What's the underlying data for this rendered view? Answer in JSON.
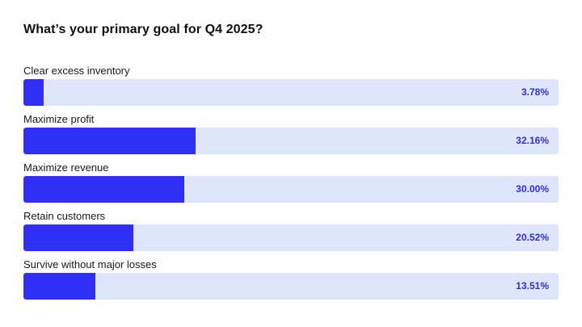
{
  "colors": {
    "bar_fill": "#2f2ff5",
    "bar_track": "#dfe6fb",
    "value_text": "#2f2fd9"
  },
  "chart_data": {
    "type": "bar",
    "orientation": "horizontal",
    "title": "What’s your primary goal for Q4 2025?",
    "categories": [
      "Clear excess inventory",
      "Maximize profit",
      "Maximize revenue",
      "Retain customers",
      "Survive without major losses"
    ],
    "values": [
      3.78,
      32.16,
      30.0,
      20.52,
      13.51
    ],
    "value_labels": [
      "3.78%",
      "32.16%",
      "30.00%",
      "20.52%",
      "13.51%"
    ],
    "xlim": [
      0,
      100
    ],
    "grid": false,
    "legend": "none"
  }
}
